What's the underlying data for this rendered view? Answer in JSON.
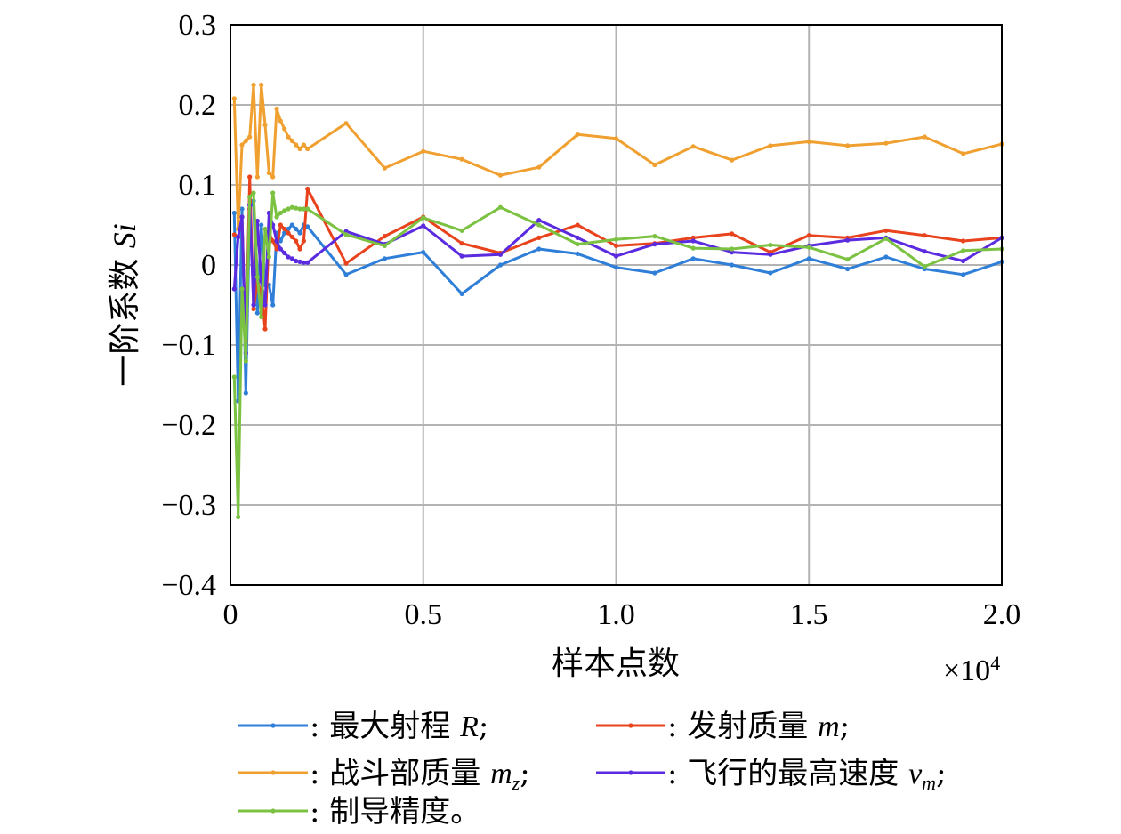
{
  "chart_data": {
    "type": "line",
    "xlabel": "样本点数",
    "x_multiplier": "×10",
    "x_multiplier_exp": "4",
    "ylabel_main": "一阶系数 ",
    "ylabel_italic": "Si",
    "xlim": [
      0,
      20000
    ],
    "ylim": [
      -0.4,
      0.3
    ],
    "x_ticks": [
      0,
      5000,
      10000,
      15000,
      20000
    ],
    "x_tick_labels": [
      "0",
      "0.5",
      "1.0",
      "1.5",
      "2.0"
    ],
    "y_ticks": [
      0.3,
      0.2,
      0.1,
      0,
      -0.1,
      -0.2,
      -0.3,
      -0.4
    ],
    "y_tick_labels": [
      "0.3",
      "0.2",
      "0.1",
      "0",
      "−0.1",
      "−0.2",
      "−0.3",
      "−0.4"
    ],
    "grid": true,
    "x": [
      100,
      200,
      300,
      400,
      500,
      600,
      700,
      800,
      900,
      1000,
      1100,
      1200,
      1300,
      1400,
      1500,
      1600,
      1700,
      1800,
      1900,
      2000,
      3000,
      4000,
      5000,
      6000,
      7000,
      8000,
      9000,
      10000,
      11000,
      12000,
      13000,
      14000,
      15000,
      16000,
      17000,
      18000,
      19000,
      20000
    ],
    "series": [
      {
        "name_text": "最大射程 ",
        "name_italic": "R",
        "name_sub": "",
        "name_end": ";",
        "color": "#2f7ed8",
        "values": [
          0.065,
          -0.17,
          0.07,
          -0.16,
          0.07,
          0.08,
          -0.06,
          0.05,
          -0.025,
          -0.025,
          -0.05,
          0.04,
          0.03,
          0.04,
          0.045,
          0.05,
          0.045,
          0.04,
          0.05,
          0.048,
          -0.012,
          0.008,
          0.016,
          -0.036,
          0.0,
          0.02,
          0.014,
          -0.003,
          -0.01,
          0.008,
          0.0,
          -0.01,
          0.008,
          -0.005,
          0.01,
          -0.005,
          -0.012,
          0.004
        ]
      },
      {
        "name_text": "发射质量 ",
        "name_italic": "m",
        "name_sub": "",
        "name_end": ";",
        "color": "#e8431c",
        "values": [
          0.038,
          0.035,
          0.06,
          -0.095,
          0.11,
          -0.055,
          -0.02,
          -0.035,
          -0.08,
          0.04,
          0.03,
          0.02,
          0.05,
          0.045,
          0.04,
          0.035,
          0.03,
          0.02,
          0.03,
          0.095,
          0.002,
          0.036,
          0.06,
          0.027,
          0.015,
          0.034,
          0.05,
          0.024,
          0.027,
          0.034,
          0.039,
          0.016,
          0.037,
          0.034,
          0.043,
          0.037,
          0.03,
          0.034
        ]
      },
      {
        "name_text": "战斗部质量 ",
        "name_italic": "m",
        "name_sub": "z",
        "name_end": ";",
        "color": "#f0a030",
        "values": [
          0.208,
          0.045,
          0.15,
          0.155,
          0.16,
          0.225,
          0.11,
          0.225,
          0.175,
          0.115,
          0.11,
          0.195,
          0.18,
          0.17,
          0.16,
          0.155,
          0.15,
          0.145,
          0.15,
          0.145,
          0.177,
          0.121,
          0.142,
          0.132,
          0.112,
          0.122,
          0.163,
          0.158,
          0.125,
          0.148,
          0.131,
          0.149,
          0.154,
          0.149,
          0.152,
          0.16,
          0.139,
          0.151
        ]
      },
      {
        "name_text": "飞行的最高速度 ",
        "name_italic": "v",
        "name_sub": "m",
        "name_end": ";",
        "color": "#5b2be0",
        "values": [
          -0.03,
          0.035,
          0.06,
          -0.11,
          0.075,
          -0.05,
          0.055,
          -0.02,
          -0.05,
          0.065,
          0.05,
          0.03,
          0.02,
          0.015,
          0.01,
          0.008,
          0.005,
          0.004,
          0.003,
          0.003,
          0.042,
          0.026,
          0.049,
          0.011,
          0.013,
          0.056,
          0.034,
          0.011,
          0.026,
          0.03,
          0.016,
          0.013,
          0.024,
          0.031,
          0.034,
          0.017,
          0.005,
          0.034
        ]
      },
      {
        "name_text": "制导精度。",
        "name_italic": "",
        "name_sub": "",
        "name_end": "",
        "color": "#7cc242",
        "values": [
          -0.14,
          -0.315,
          -0.03,
          -0.12,
          0.085,
          0.09,
          -0.015,
          -0.065,
          0.045,
          0.01,
          0.09,
          0.06,
          0.065,
          0.068,
          0.07,
          0.072,
          0.071,
          0.07,
          0.07,
          0.07,
          0.038,
          0.024,
          0.059,
          0.043,
          0.072,
          0.05,
          0.026,
          0.032,
          0.036,
          0.021,
          0.02,
          0.025,
          0.022,
          0.007,
          0.033,
          -0.002,
          0.018,
          0.02
        ]
      }
    ]
  }
}
